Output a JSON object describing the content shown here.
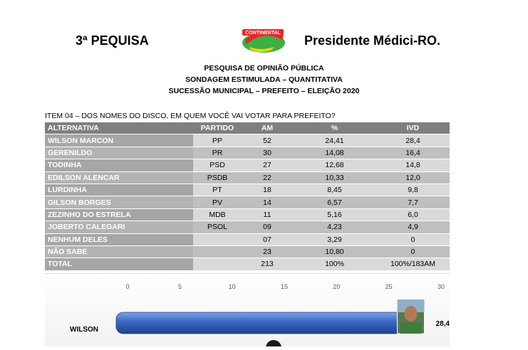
{
  "header": {
    "left": "3ª PEQUISA",
    "right": "Presidente Médici-RO.",
    "logo_text": "CONTINENTAL"
  },
  "titles": [
    "PESQUISA DE OPINIÃO PÚBLICA",
    "SONDAGEM ESTIMULADA – QUANTITATIVA",
    "SUCESSÃO MUNICIPAL – PREFEITO – ELEIÇÃO 2020"
  ],
  "item": "ITEM 04 – DOS NOMES DO DISCO, EM QUEM VOCÊ VAI VOTAR PARA PREFEITO?",
  "table": {
    "headers": [
      "ALTERNATIVA",
      "PARTIDO",
      "AM",
      "%",
      "IVD"
    ],
    "rows": [
      [
        "WILSON MARCON",
        "PP",
        "52",
        "24,41",
        "28,4"
      ],
      [
        "GERENILDO",
        "PR",
        "30",
        "14,08",
        "16,4"
      ],
      [
        "TODINHA",
        "PSD",
        "27",
        "12,68",
        "14,8"
      ],
      [
        "EDILSON ALENCAR",
        "PSDB",
        "22",
        "10,33",
        "12,0"
      ],
      [
        "LURDINHA",
        "PT",
        "18",
        "8,45",
        "9,8"
      ],
      [
        "GILSON BORGES",
        "PV",
        "14",
        "6,57",
        "7,7"
      ],
      [
        "ZEZINHO DO ESTRELA",
        "MDB",
        "11",
        "5,16",
        "6,0"
      ],
      [
        "JOBERTO CALEGARI",
        "PSOL",
        "09",
        "4,23",
        "4,9"
      ],
      [
        "NENHUM DELES",
        "",
        "07",
        "3,29",
        "0"
      ],
      [
        "NÃO SABE",
        "",
        "23",
        "10,80",
        "0"
      ],
      [
        "TOTAL",
        "",
        "213",
        "100%",
        "100%/183AM"
      ]
    ]
  },
  "chart_data": {
    "type": "bar",
    "orientation": "horizontal",
    "x_ticks": [
      "0",
      "5",
      "10",
      "15",
      "20",
      "25",
      "30"
    ],
    "xlim": [
      0,
      30
    ],
    "categories": [
      "WILSON"
    ],
    "values": [
      28.4
    ],
    "value_labels": [
      "28,4"
    ],
    "bar_color": "#3a66c4"
  }
}
